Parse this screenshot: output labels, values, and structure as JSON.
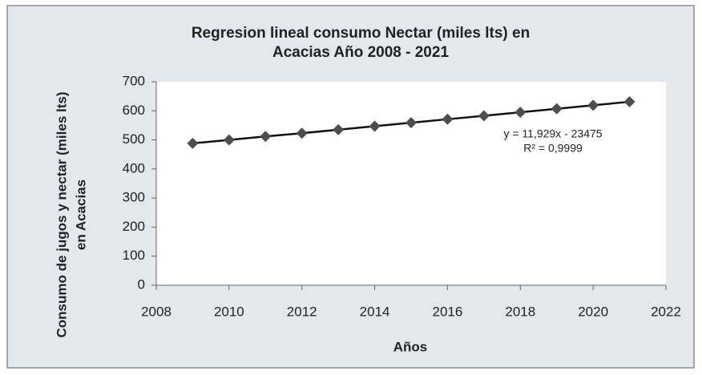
{
  "chart_data": {
    "type": "line",
    "title": [
      "Regresion lineal consumo Nectar (miles lts) en",
      "Acacias Año 2008 - 2021"
    ],
    "y_label": [
      "Consumo de jugos y nectar (miles lts)",
      "en Acacias"
    ],
    "x_label": "Años",
    "x": [
      2009,
      2010,
      2011,
      2012,
      2013,
      2014,
      2015,
      2016,
      2017,
      2018,
      2019,
      2020,
      2021
    ],
    "series": [
      {
        "name": "Consumo",
        "color": "#4d4d4d",
        "values": [
          488,
          500,
          512,
          523,
          535,
          547,
          559,
          571,
          583,
          595,
          607,
          619,
          631
        ]
      }
    ],
    "annotations": [
      "y = 11,929x - 23475",
      "R² = 0,9999"
    ],
    "xlim": [
      2008,
      2022
    ],
    "xticks": [
      2008,
      2010,
      2012,
      2014,
      2016,
      2018,
      2020,
      2022
    ],
    "ylim": [
      0,
      700
    ],
    "yticks": [
      0,
      100,
      200,
      300,
      400,
      500,
      600,
      700
    ],
    "grid": false
  }
}
